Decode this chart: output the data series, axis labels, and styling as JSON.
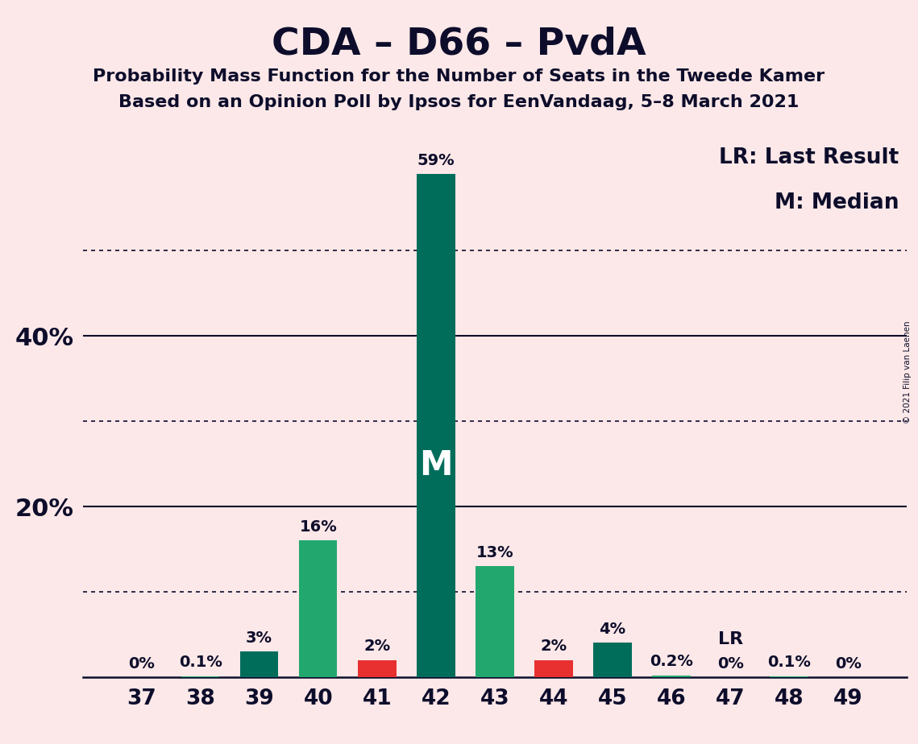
{
  "title": "CDA – D66 – PvdA",
  "subtitle1": "Probability Mass Function for the Number of Seats in the Tweede Kamer",
  "subtitle2": "Based on an Opinion Poll by Ipsos for EenVandaag, 5–8 March 2021",
  "copyright": "© 2021 Filip van Laenen",
  "legend_lr": "LR: Last Result",
  "legend_m": "M: Median",
  "x_seats": [
    37,
    38,
    39,
    40,
    41,
    42,
    43,
    44,
    45,
    46,
    47,
    48,
    49
  ],
  "values": [
    0.0,
    0.1,
    3.0,
    16.0,
    2.0,
    59.0,
    13.0,
    2.0,
    4.0,
    0.2,
    0.0,
    0.1,
    0.0
  ],
  "labels": [
    "0%",
    "0.1%",
    "3%",
    "16%",
    "2%",
    "59%",
    "13%",
    "2%",
    "4%",
    "0.2%",
    "0%",
    "0.1%",
    "0%"
  ],
  "colors": [
    "#22a86e",
    "#22a86e",
    "#006d5b",
    "#22a86e",
    "#e83030",
    "#006d5b",
    "#22a86e",
    "#e83030",
    "#006d5b",
    "#22a86e",
    "#22a86e",
    "#22a86e",
    "#22a86e"
  ],
  "median_seat": 42,
  "lr_seat": 47,
  "background_color": "#fce8e8",
  "bar_width": 0.65,
  "ylim": [
    0,
    65
  ],
  "solid_yticks": [
    20,
    40
  ],
  "dotted_yticks": [
    10,
    30,
    50
  ],
  "title_fontsize": 34,
  "subtitle_fontsize": 16,
  "label_fontsize": 14,
  "tick_fontsize": 19,
  "ytick_fontsize": 22,
  "legend_fontsize": 19,
  "m_label_fontsize": 30,
  "lr_label_fontsize": 16,
  "axis_color": "#0d0d2b",
  "text_color": "#0d0d2b",
  "green_bright": "#22a86e",
  "green_dark": "#006d5b",
  "red": "#e83030"
}
